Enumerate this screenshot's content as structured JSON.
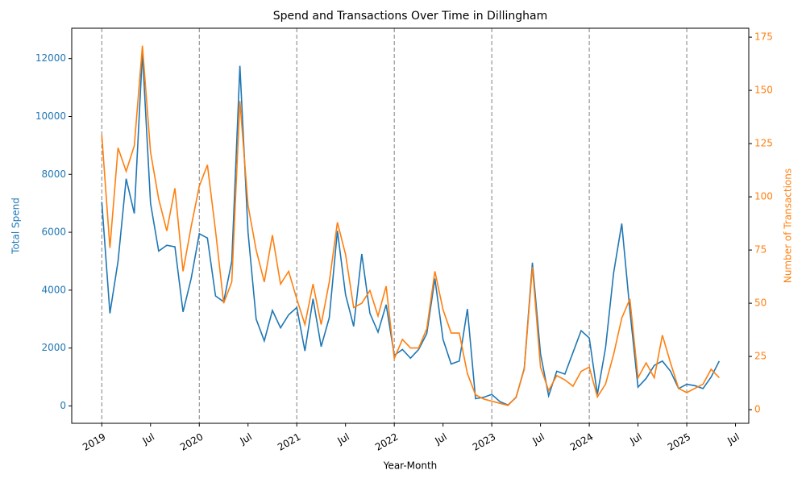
{
  "chart_data": {
    "type": "line",
    "title": "Spend and Transactions Over Time in Dillingham",
    "xlabel": "Year-Month",
    "ylabel": "Total Spend",
    "y2label": "Number of Transactions",
    "x": [
      "2019-01",
      "2019-02",
      "2019-03",
      "2019-04",
      "2019-05",
      "2019-06",
      "2019-07",
      "2019-08",
      "2019-09",
      "2019-10",
      "2019-11",
      "2019-12",
      "2020-01",
      "2020-02",
      "2020-03",
      "2020-04",
      "2020-05",
      "2020-06",
      "2020-07",
      "2020-08",
      "2020-09",
      "2020-10",
      "2020-11",
      "2020-12",
      "2021-01",
      "2021-02",
      "2021-03",
      "2021-04",
      "2021-05",
      "2021-06",
      "2021-07",
      "2021-08",
      "2021-09",
      "2021-10",
      "2021-11",
      "2021-12",
      "2022-01",
      "2022-02",
      "2022-03",
      "2022-04",
      "2022-05",
      "2022-06",
      "2022-07",
      "2022-08",
      "2022-09",
      "2022-10",
      "2022-11",
      "2022-12",
      "2023-01",
      "2023-02",
      "2023-03",
      "2023-04",
      "2023-05",
      "2023-06",
      "2023-07",
      "2023-08",
      "2023-09",
      "2023-10",
      "2023-11",
      "2023-12",
      "2024-01",
      "2024-02",
      "2024-03",
      "2024-04",
      "2024-05",
      "2024-06",
      "2024-07",
      "2024-08",
      "2024-09",
      "2024-10",
      "2024-11",
      "2024-12",
      "2025-01",
      "2025-02",
      "2025-03",
      "2025-04",
      "2025-05"
    ],
    "series": [
      {
        "name": "Total Spend",
        "color": "#1f77b4",
        "axis": "y",
        "values": [
          7050,
          3200,
          5000,
          7850,
          6650,
          12200,
          7000,
          5350,
          5550,
          5500,
          3250,
          4400,
          5950,
          5800,
          3800,
          3600,
          5000,
          11750,
          6000,
          3000,
          2250,
          3300,
          2700,
          3150,
          3400,
          1900,
          3700,
          2050,
          3050,
          6050,
          3850,
          2750,
          5250,
          3200,
          2550,
          3500,
          1750,
          1950,
          1650,
          1950,
          2500,
          4400,
          2300,
          1450,
          1550,
          3350,
          250,
          300,
          400,
          150,
          30,
          300,
          1300,
          4950,
          1800,
          350,
          1200,
          1100,
          1850,
          2600,
          2350,
          400,
          2000,
          4600,
          6300,
          3300,
          650,
          950,
          1400,
          1550,
          1200,
          600,
          750,
          700,
          600,
          1000,
          1550
        ]
      },
      {
        "name": "Number of Transactions",
        "color": "#ff7f0e",
        "axis": "y2",
        "values": [
          129,
          76,
          123,
          112,
          124,
          171,
          121,
          99,
          84,
          104,
          65,
          86,
          105,
          115,
          84,
          50,
          60,
          145,
          96,
          75,
          60,
          82,
          59,
          65,
          52,
          40,
          59,
          40,
          60,
          88,
          73,
          48,
          50,
          56,
          44,
          58,
          24,
          33,
          29,
          29,
          38,
          65,
          47,
          36,
          36,
          17,
          7,
          5,
          4,
          3,
          2,
          6,
          19,
          67,
          20,
          9,
          16,
          14,
          11,
          18,
          20,
          6,
          12,
          26,
          43,
          52,
          15,
          22,
          15,
          35,
          22,
          10,
          8,
          10,
          12,
          19,
          15
        ]
      }
    ],
    "xlim": [
      "2018-09-10",
      "2025-08-20"
    ],
    "xticks": [
      {
        "value": "2019-01",
        "label": "2019"
      },
      {
        "value": "2019-07",
        "label": "Jul"
      },
      {
        "value": "2020-01",
        "label": "2020"
      },
      {
        "value": "2020-07",
        "label": "Jul"
      },
      {
        "value": "2021-01",
        "label": "2021"
      },
      {
        "value": "2021-07",
        "label": "Jul"
      },
      {
        "value": "2022-01",
        "label": "2022"
      },
      {
        "value": "2022-07",
        "label": "Jul"
      },
      {
        "value": "2023-01",
        "label": "2023"
      },
      {
        "value": "2023-07",
        "label": "Jul"
      },
      {
        "value": "2024-01",
        "label": "2024"
      },
      {
        "value": "2024-07",
        "label": "Jul"
      },
      {
        "value": "2025-01",
        "label": "2025"
      },
      {
        "value": "2025-07",
        "label": "Jul"
      }
    ],
    "vlines": [
      "2019-01",
      "2020-01",
      "2021-01",
      "2022-01",
      "2023-01",
      "2024-01",
      "2025-01"
    ],
    "ylim": [
      -600,
      13050
    ],
    "yticks": [
      0,
      2000,
      4000,
      6000,
      8000,
      10000,
      12000
    ],
    "y2lim": [
      -6.4,
      179.2
    ],
    "y2ticks": [
      0,
      25,
      50,
      75,
      100,
      125,
      150,
      175
    ]
  }
}
